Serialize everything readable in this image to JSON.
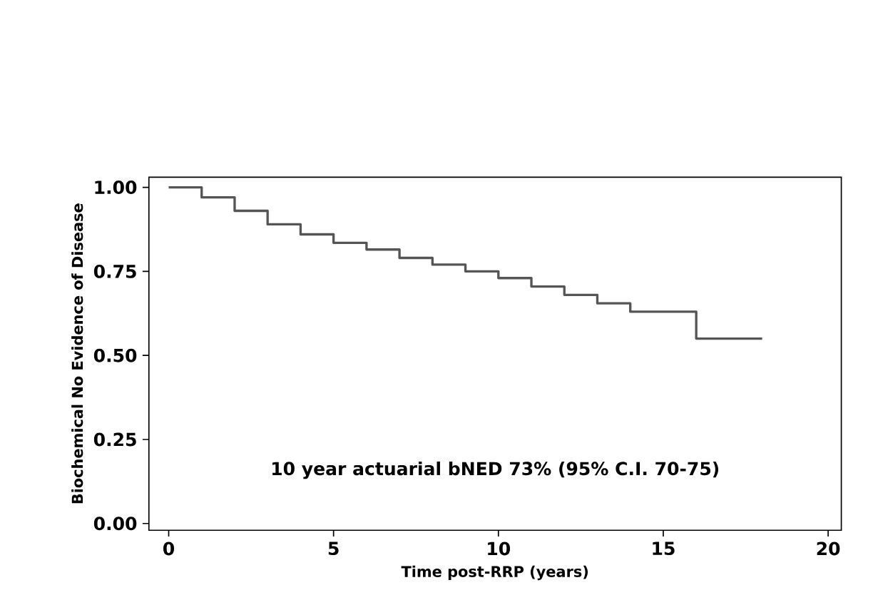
{
  "chart_data": {
    "type": "step",
    "xlabel": "Time post-RRP (years)",
    "ylabel": "Biochemical No Evidence of Disease",
    "x": [
      0,
      1,
      2,
      3,
      4,
      5,
      6,
      7,
      8,
      9,
      10,
      11,
      12,
      13,
      14,
      16,
      18
    ],
    "series": [
      {
        "color": "#555555",
        "values": [
          1.0,
          0.97,
          0.93,
          0.89,
          0.86,
          0.835,
          0.815,
          0.79,
          0.77,
          0.75,
          0.73,
          0.705,
          0.68,
          0.655,
          0.63,
          0.55,
          0.55
        ]
      }
    ],
    "xlim": [
      -0.6,
      20.4
    ],
    "ylim": [
      -0.02,
      1.03
    ],
    "xticks": [
      0,
      5,
      10,
      15,
      20
    ],
    "yticks": [
      {
        "value": 0,
        "label": "0.00"
      },
      {
        "value": 0.25,
        "label": "0.25"
      },
      {
        "value": 0.5,
        "label": "0.50"
      },
      {
        "value": 0.75,
        "label": "0.75"
      },
      {
        "value": 1,
        "label": "1.00"
      }
    ],
    "annotations": [
      "10 year actuarial bNED 73% (95% C.I. 70-75)"
    ],
    "grid": false
  }
}
